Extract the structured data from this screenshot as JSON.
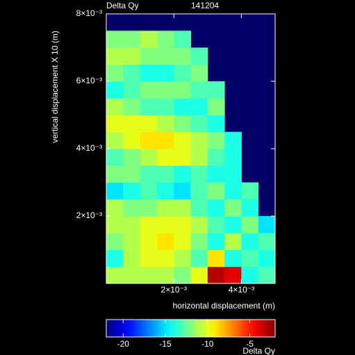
{
  "chart_data": {
    "type": "heatmap",
    "title": "Delta Qy",
    "subtitle": "141204",
    "x_label": "horizontal displacement (m)",
    "y_label": "vertical displacement X 10 (m)",
    "colorbar_label": "Delta Qy",
    "xlim": [
      0,
      0.005
    ],
    "ylim": [
      0,
      0.008
    ],
    "xticks": [
      {
        "value": 0.002,
        "label": "2×10⁻³"
      },
      {
        "value": 0.004,
        "label": "4×10⁻³"
      }
    ],
    "yticks": [
      {
        "value": 0.002,
        "label": "2×10⁻³"
      },
      {
        "value": 0.004,
        "label": "4×10⁻³"
      },
      {
        "value": 0.006,
        "label": "6×10⁻³"
      },
      {
        "value": 0.008,
        "label": "8×10⁻³"
      }
    ],
    "clim": [
      -22,
      -2
    ],
    "cticks": [
      -20,
      -15,
      -10,
      -5
    ],
    "colormap": "jet",
    "background_color": "#000066",
    "xbins": [
      0,
      0.0005,
      0.001,
      0.0015,
      0.002,
      0.0025,
      0.003,
      0.0035,
      0.004,
      0.0045,
      0.005
    ],
    "ybins": [
      0,
      0.0005,
      0.001,
      0.0015,
      0.002,
      0.0025,
      0.003,
      0.0035,
      0.004,
      0.0045,
      0.005,
      0.0055,
      0.006,
      0.0065,
      0.007,
      0.0075
    ],
    "z": [
      [
        -11,
        -11,
        -11,
        -11,
        -12,
        -10,
        -3,
        -4,
        -14,
        -13
      ],
      [
        -14,
        -11,
        -10,
        -10,
        -11,
        -13,
        -9,
        -14,
        -13,
        -14
      ],
      [
        -12,
        -11,
        -10,
        -9,
        -10,
        -12,
        -14,
        -11,
        -14,
        -13
      ],
      [
        -11,
        -11,
        -10,
        -10,
        -10,
        -11,
        -13,
        -14,
        -12,
        -15
      ],
      [
        -11,
        -12,
        -12,
        -11,
        -11,
        -13,
        -14,
        -12,
        -14,
        null
      ],
      [
        -15,
        -14,
        -13,
        -14,
        -15,
        -13,
        -12,
        -14,
        -13,
        null
      ],
      [
        -12,
        -12,
        -13,
        -13,
        -14,
        -13,
        -14,
        -14,
        null,
        null
      ],
      [
        -13,
        -12,
        -11,
        -10,
        -10,
        -11,
        -13,
        -14,
        null,
        null
      ],
      [
        -11,
        -10,
        -9,
        -9,
        -10,
        -11,
        -12,
        -14,
        null,
        null
      ],
      [
        -10,
        -10,
        -10,
        -11,
        -12,
        -13,
        -14,
        null,
        null,
        null
      ],
      [
        -11,
        -12,
        -13,
        -13,
        -14,
        -14,
        -12,
        null,
        null,
        null
      ],
      [
        -14,
        -13,
        -12,
        -12,
        -12,
        -13,
        -13,
        null,
        null,
        null
      ],
      [
        -12,
        -13,
        -14,
        -14,
        -13,
        -12,
        null,
        null,
        null,
        null
      ],
      [
        -11,
        -11,
        -12,
        -12,
        -12,
        -13,
        null,
        null,
        null,
        null
      ],
      [
        -12,
        -12,
        -11,
        -12,
        -13,
        null,
        null,
        null,
        null,
        null
      ]
    ]
  }
}
